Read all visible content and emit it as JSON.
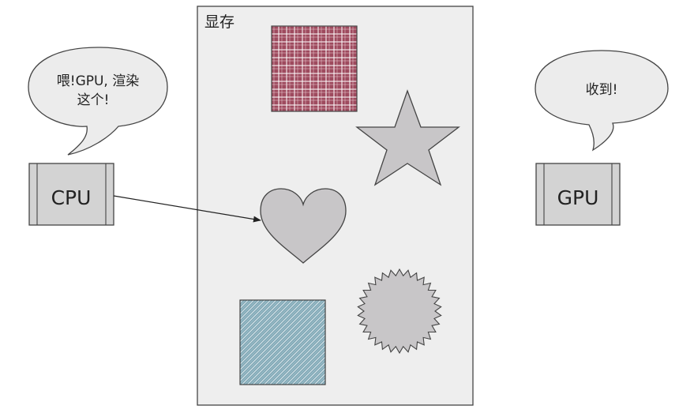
{
  "memory": {
    "label": "显存"
  },
  "cpu": {
    "label": "CPU",
    "speech_line1": "喂!GPU, 渲染",
    "speech_line2": "这个!"
  },
  "gpu": {
    "label": "GPU",
    "speech": "收到!"
  },
  "shapes": {
    "plaid_square": "plaid-square",
    "star": "star",
    "heart": "heart",
    "starburst": "starburst-circle",
    "hatched_square": "hatched-square"
  },
  "colors": {
    "memory_fill": "#eeeeee",
    "chip_fill": "#d3d3d3",
    "plaid": "#9e4a5e",
    "hatch": "#7fa7b5",
    "shape_gray": "#c8c6c8",
    "bubble": "#ececec"
  }
}
